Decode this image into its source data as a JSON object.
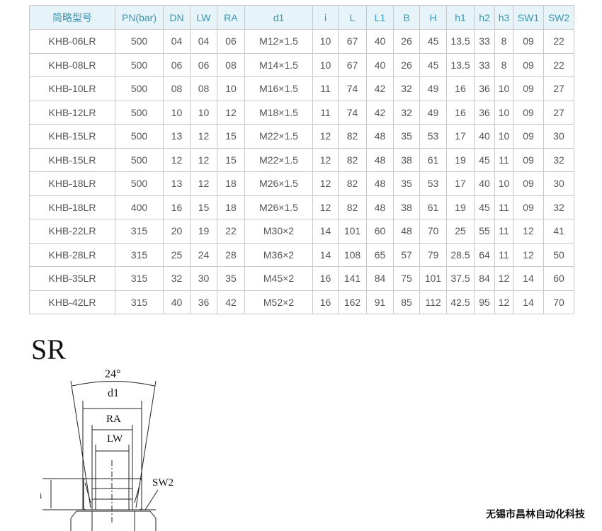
{
  "table": {
    "headers": [
      "简略型号",
      "PN(bar)",
      "DN",
      "LW",
      "RA",
      "d1",
      "i",
      "L",
      "L1",
      "B",
      "H",
      "h1",
      "h2",
      "h3",
      "SW1",
      "SW2"
    ],
    "rows": [
      [
        "KHB-06LR",
        "500",
        "04",
        "04",
        "06",
        "M12×1.5",
        "10",
        "67",
        "40",
        "26",
        "45",
        "13.5",
        "33",
        "8",
        "09",
        "22"
      ],
      [
        "KHB-08LR",
        "500",
        "06",
        "06",
        "08",
        "M14×1.5",
        "10",
        "67",
        "40",
        "26",
        "45",
        "13.5",
        "33",
        "8",
        "09",
        "22"
      ],
      [
        "KHB-10LR",
        "500",
        "08",
        "08",
        "10",
        "M16×1.5",
        "11",
        "74",
        "42",
        "32",
        "49",
        "16",
        "36",
        "10",
        "09",
        "27"
      ],
      [
        "KHB-12LR",
        "500",
        "10",
        "10",
        "12",
        "M18×1.5",
        "11",
        "74",
        "42",
        "32",
        "49",
        "16",
        "36",
        "10",
        "09",
        "27"
      ],
      [
        "KHB-15LR",
        "500",
        "13",
        "12",
        "15",
        "M22×1.5",
        "12",
        "82",
        "48",
        "35",
        "53",
        "17",
        "40",
        "10",
        "09",
        "30"
      ],
      [
        "KHB-15LR",
        "500",
        "12",
        "12",
        "15",
        "M22×1.5",
        "12",
        "82",
        "48",
        "38",
        "61",
        "19",
        "45",
        "11",
        "09",
        "32"
      ],
      [
        "KHB-18LR",
        "500",
        "13",
        "12",
        "18",
        "M26×1.5",
        "12",
        "82",
        "48",
        "35",
        "53",
        "17",
        "40",
        "10",
        "09",
        "30"
      ],
      [
        "KHB-18LR",
        "400",
        "16",
        "15",
        "18",
        "M26×1.5",
        "12",
        "82",
        "48",
        "38",
        "61",
        "19",
        "45",
        "11",
        "09",
        "32"
      ],
      [
        "KHB-22LR",
        "315",
        "20",
        "19",
        "22",
        "M30×2",
        "14",
        "101",
        "60",
        "48",
        "70",
        "25",
        "55",
        "11",
        "12",
        "41"
      ],
      [
        "KHB-28LR",
        "315",
        "25",
        "24",
        "28",
        "M36×2",
        "14",
        "108",
        "65",
        "57",
        "79",
        "28.5",
        "64",
        "11",
        "12",
        "50"
      ],
      [
        "KHB-35LR",
        "315",
        "32",
        "30",
        "35",
        "M45×2",
        "16",
        "141",
        "84",
        "75",
        "101",
        "37.5",
        "84",
        "12",
        "14",
        "60"
      ],
      [
        "KHB-42LR",
        "315",
        "40",
        "36",
        "42",
        "M52×2",
        "16",
        "162",
        "91",
        "85",
        "112",
        "42.5",
        "95",
        "12",
        "14",
        "70"
      ]
    ]
  },
  "section_title": "SR",
  "diagram": {
    "angle": "24°",
    "d1": "d1",
    "ra": "RA",
    "lw": "LW",
    "i": "i",
    "sw2": "SW2"
  },
  "company": "无锡市昌林自动化科技"
}
